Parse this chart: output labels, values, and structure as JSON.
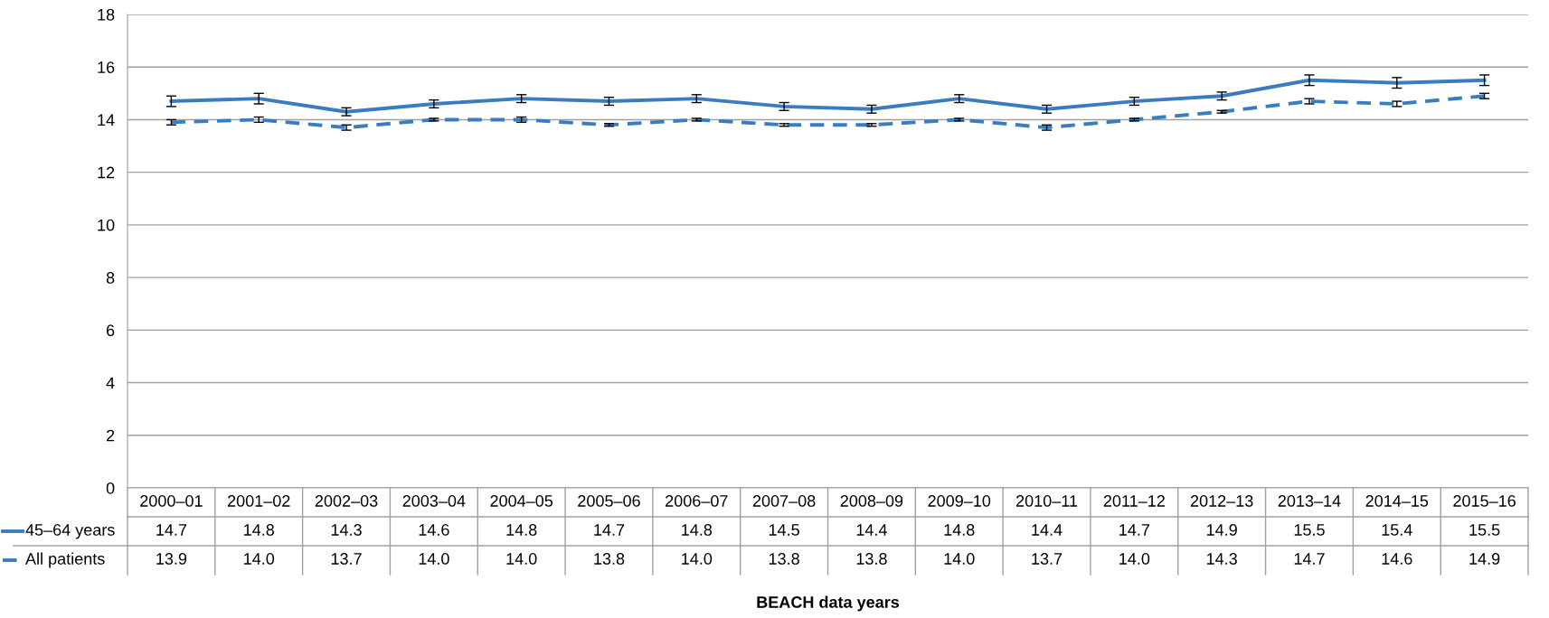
{
  "chart_data": {
    "type": "line",
    "annotations": [
      "BEACH data years"
    ],
    "categories": [
      "2000–01",
      "2001–02",
      "2002–03",
      "2003–04",
      "2004–05",
      "2005–06",
      "2006–07",
      "2007–08",
      "2008–09",
      "2009–10",
      "2010–11",
      "2011–12",
      "2012–13",
      "2013–14",
      "2014–15",
      "2015–16"
    ],
    "series": [
      {
        "name": "45–64 years",
        "color": "#3a7cc0",
        "line_style": "solid",
        "values": [
          14.7,
          14.8,
          14.3,
          14.6,
          14.8,
          14.7,
          14.8,
          14.5,
          14.4,
          14.8,
          14.4,
          14.7,
          14.9,
          15.5,
          15.4,
          15.5
        ],
        "value_labels": [
          "14.7",
          "14.8",
          "14.3",
          "14.6",
          "14.8",
          "14.7",
          "14.8",
          "14.5",
          "14.4",
          "14.8",
          "14.4",
          "14.7",
          "14.9",
          "15.5",
          "15.4",
          "15.5"
        ],
        "errors": [
          0.2,
          0.2,
          0.15,
          0.15,
          0.15,
          0.15,
          0.15,
          0.15,
          0.15,
          0.15,
          0.15,
          0.15,
          0.15,
          0.2,
          0.2,
          0.2
        ]
      },
      {
        "name": "All patients",
        "color": "#3a7cc0",
        "line_style": "dashed",
        "values": [
          13.9,
          14.0,
          13.7,
          14.0,
          14.0,
          13.8,
          14.0,
          13.8,
          13.8,
          14.0,
          13.7,
          14.0,
          14.3,
          14.7,
          14.6,
          14.9
        ],
        "value_labels": [
          "13.9",
          "14.0",
          "13.7",
          "14.0",
          "14.0",
          "13.8",
          "14.0",
          "13.8",
          "13.8",
          "14.0",
          "13.7",
          "14.0",
          "14.3",
          "14.7",
          "14.6",
          "14.9"
        ],
        "errors": [
          0.1,
          0.1,
          0.1,
          0.05,
          0.1,
          0.05,
          0.05,
          0.05,
          0.05,
          0.05,
          0.1,
          0.05,
          0.05,
          0.1,
          0.1,
          0.1
        ]
      }
    ],
    "ylim": [
      0,
      18
    ],
    "yticks": [
      0,
      2,
      4,
      6,
      8,
      10,
      12,
      14,
      16,
      18
    ],
    "grid": "y",
    "marker": "none",
    "legend": "bottom left"
  }
}
